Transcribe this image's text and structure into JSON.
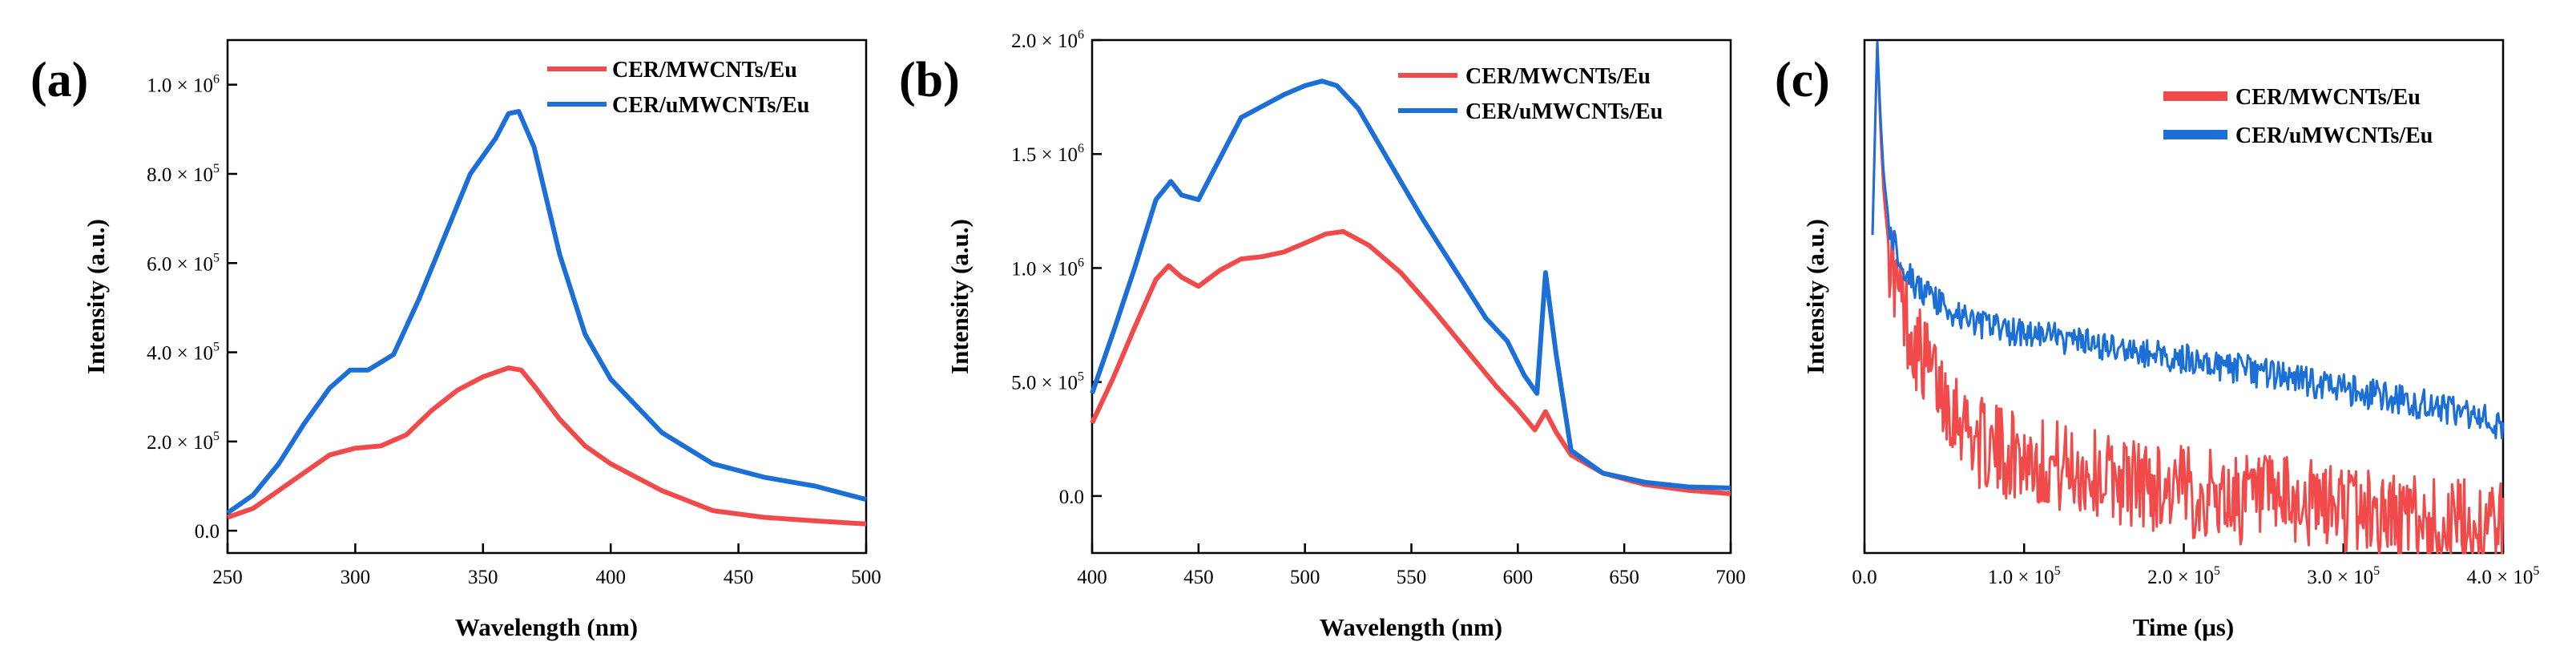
{
  "colors": {
    "red": "#f04a4a",
    "blue": "#1c6fd6",
    "axis": "#000000"
  },
  "chart_data": [
    {
      "type": "line",
      "panel_label": "(a)",
      "xlabel": "Wavelength (nm)",
      "ylabel": "Intensity (a.u.)",
      "xlim": [
        250,
        500
      ],
      "ylim": [
        -50000,
        1100000
      ],
      "x_ticks": [
        250,
        300,
        350,
        400,
        450,
        500
      ],
      "x_tick_labels": [
        "250",
        "300",
        "350",
        "400",
        "450",
        "500"
      ],
      "y_ticks": [
        0,
        200000,
        400000,
        600000,
        800000,
        1000000
      ],
      "y_tick_labels": [
        {
          "m": "0.0",
          "e": ""
        },
        {
          "m": "2.0 × 10",
          "e": "5"
        },
        {
          "m": "4.0 × 10",
          "e": "5"
        },
        {
          "m": "6.0 × 10",
          "e": "5"
        },
        {
          "m": "8.0 × 10",
          "e": "5"
        },
        {
          "m": "1.0 × 10",
          "e": "6"
        }
      ],
      "legend_position": "top-right",
      "series": [
        {
          "name": "CER/MWCNTs/Eu",
          "color": "red",
          "x": [
            250,
            260,
            270,
            280,
            290,
            300,
            310,
            320,
            330,
            340,
            350,
            355,
            360,
            365,
            370,
            380,
            390,
            400,
            420,
            440,
            460,
            480,
            500
          ],
          "y": [
            30000,
            50000,
            90000,
            130000,
            170000,
            185000,
            190000,
            215000,
            270000,
            315000,
            345000,
            355000,
            365000,
            360000,
            325000,
            250000,
            190000,
            150000,
            90000,
            45000,
            30000,
            22000,
            15000
          ]
        },
        {
          "name": "CER/uMWCNTs/Eu",
          "color": "blue",
          "x": [
            250,
            260,
            270,
            280,
            290,
            298,
            305,
            315,
            325,
            335,
            345,
            355,
            360,
            364,
            370,
            380,
            390,
            400,
            420,
            440,
            460,
            480,
            500
          ],
          "y": [
            40000,
            80000,
            150000,
            240000,
            320000,
            360000,
            360000,
            395000,
            520000,
            660000,
            800000,
            880000,
            935000,
            940000,
            860000,
            620000,
            440000,
            340000,
            220000,
            150000,
            120000,
            100000,
            70000
          ]
        }
      ]
    },
    {
      "type": "line",
      "panel_label": "(b)",
      "xlabel": "Wavelength (nm)",
      "ylabel": "Intensity (a.u.)",
      "xlim": [
        400,
        700
      ],
      "ylim": [
        -250000,
        2000000
      ],
      "x_ticks": [
        400,
        450,
        500,
        550,
        600,
        650,
        700
      ],
      "x_tick_labels": [
        "400",
        "450",
        "500",
        "550",
        "600",
        "650",
        "700"
      ],
      "y_ticks": [
        0,
        500000,
        1000000,
        1500000,
        2000000
      ],
      "y_tick_labels": [
        {
          "m": "0.0",
          "e": ""
        },
        {
          "m": "5.0 × 10",
          "e": "5"
        },
        {
          "m": "1.0 × 10",
          "e": "6"
        },
        {
          "m": "1.5 × 10",
          "e": "6"
        },
        {
          "m": "2.0 × 10",
          "e": "6"
        }
      ],
      "legend_position": "top-right",
      "series": [
        {
          "name": "CER/MWCNTs/Eu",
          "color": "red",
          "x": [
            400,
            410,
            420,
            430,
            436,
            442,
            450,
            460,
            470,
            480,
            490,
            500,
            510,
            518,
            530,
            545,
            560,
            575,
            590,
            600,
            608,
            613,
            618,
            625,
            640,
            660,
            680,
            700
          ],
          "y": [
            320000,
            520000,
            740000,
            950000,
            1010000,
            960000,
            920000,
            990000,
            1040000,
            1050000,
            1070000,
            1110000,
            1150000,
            1160000,
            1100000,
            980000,
            820000,
            650000,
            480000,
            380000,
            290000,
            370000,
            280000,
            180000,
            100000,
            50000,
            25000,
            10000
          ]
        },
        {
          "name": "CER/uMWCNTs/Eu",
          "color": "blue",
          "x": [
            400,
            410,
            420,
            430,
            437,
            442,
            450,
            460,
            470,
            480,
            490,
            500,
            508,
            515,
            525,
            540,
            555,
            570,
            585,
            595,
            603,
            609,
            613,
            618,
            625,
            640,
            660,
            680,
            700
          ],
          "y": [
            450000,
            720000,
            1000000,
            1300000,
            1380000,
            1320000,
            1300000,
            1480000,
            1660000,
            1710000,
            1760000,
            1800000,
            1820000,
            1800000,
            1700000,
            1460000,
            1220000,
            1000000,
            780000,
            680000,
            530000,
            450000,
            980000,
            620000,
            200000,
            100000,
            60000,
            40000,
            35000
          ]
        }
      ]
    },
    {
      "type": "line",
      "panel_label": "(c)",
      "xlabel": "Time (μs)",
      "ylabel": "Intensity (a.u.)",
      "xlim": [
        0,
        400000
      ],
      "ylim": [
        0,
        1
      ],
      "x_ticks": [
        0,
        100000,
        200000,
        300000,
        400000
      ],
      "x_tick_labels": [
        {
          "m": "0.0",
          "e": ""
        },
        {
          "m": "1.0 × 10",
          "e": "5"
        },
        {
          "m": "2.0 × 10",
          "e": "5"
        },
        {
          "m": "3.0 × 10",
          "e": "5"
        },
        {
          "m": "4.0 × 10",
          "e": "5"
        }
      ],
      "y_ticks": [],
      "legend_position": "top-right",
      "series": [
        {
          "name": "CER/MWCNTs/Eu",
          "color": "red",
          "x": [
            5000,
            8000,
            10000,
            12000,
            15000,
            20000,
            25000,
            30000,
            40000,
            50000,
            60000,
            70000,
            80000,
            100000,
            120000,
            150000,
            200000,
            250000,
            300000,
            350000,
            400000
          ],
          "y": [
            0.62,
            1.0,
            0.82,
            0.7,
            0.6,
            0.52,
            0.47,
            0.42,
            0.36,
            0.31,
            0.27,
            0.22,
            0.2,
            0.19,
            0.17,
            0.15,
            0.12,
            0.1,
            0.09,
            0.06,
            0.05
          ],
          "noise": 0.09
        },
        {
          "name": "CER/uMWCNTs/Eu",
          "color": "blue",
          "x": [
            5000,
            8000,
            10000,
            12000,
            15000,
            20000,
            25000,
            30000,
            40000,
            50000,
            60000,
            70000,
            80000,
            100000,
            120000,
            150000,
            200000,
            250000,
            300000,
            350000,
            400000
          ],
          "y": [
            0.62,
            1.0,
            0.85,
            0.74,
            0.65,
            0.59,
            0.56,
            0.53,
            0.5,
            0.48,
            0.46,
            0.45,
            0.44,
            0.43,
            0.42,
            0.4,
            0.38,
            0.35,
            0.32,
            0.29,
            0.25
          ],
          "noise": 0.03
        }
      ]
    }
  ]
}
